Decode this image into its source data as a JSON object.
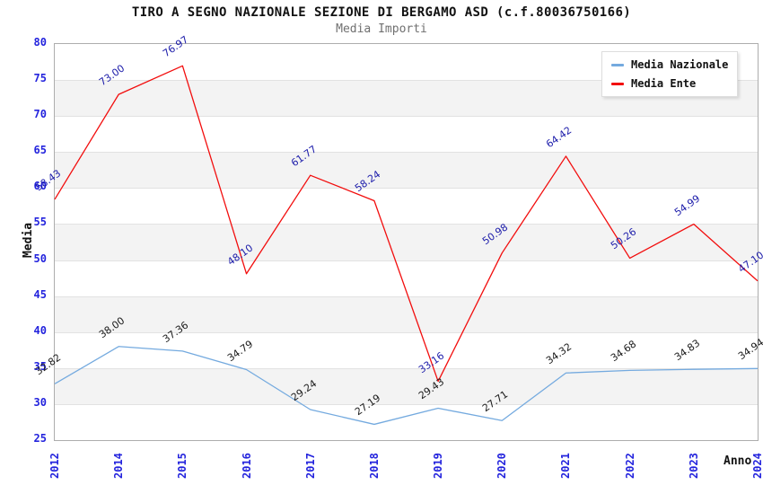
{
  "chart_data": {
    "type": "line",
    "title": "TIRO A SEGNO NAZIONALE SEZIONE DI BERGAMO ASD (c.f.80036750166)",
    "subtitle": "Media Importi",
    "xlabel": "Anno",
    "ylabel": "Media",
    "categories": [
      "2012",
      "2014",
      "2015",
      "2016",
      "2017",
      "2018",
      "2019",
      "2020",
      "2021",
      "2022",
      "2023",
      "2024"
    ],
    "series": [
      {
        "name": "Media Nazionale",
        "color": "#74AADF",
        "label_color": "#1a1a1a",
        "values": [
          32.82,
          38.0,
          37.36,
          34.79,
          29.24,
          27.19,
          29.43,
          27.71,
          34.32,
          34.68,
          34.83,
          34.94
        ]
      },
      {
        "name": "Media Ente",
        "color": "#F20D0D",
        "label_color": "#1c1caa",
        "values": [
          58.43,
          73.0,
          76.97,
          48.1,
          61.77,
          58.24,
          33.16,
          50.98,
          64.42,
          50.26,
          54.99,
          47.1
        ]
      }
    ],
    "ylim": [
      25,
      80
    ],
    "ytick_step": 5,
    "value_label_decimals": 2,
    "grid": "horizontal gridlines with alternating gray bands",
    "legend_position": "top-right",
    "tick_label_color": "#2323dd",
    "band_color": "#f3f3f3"
  }
}
